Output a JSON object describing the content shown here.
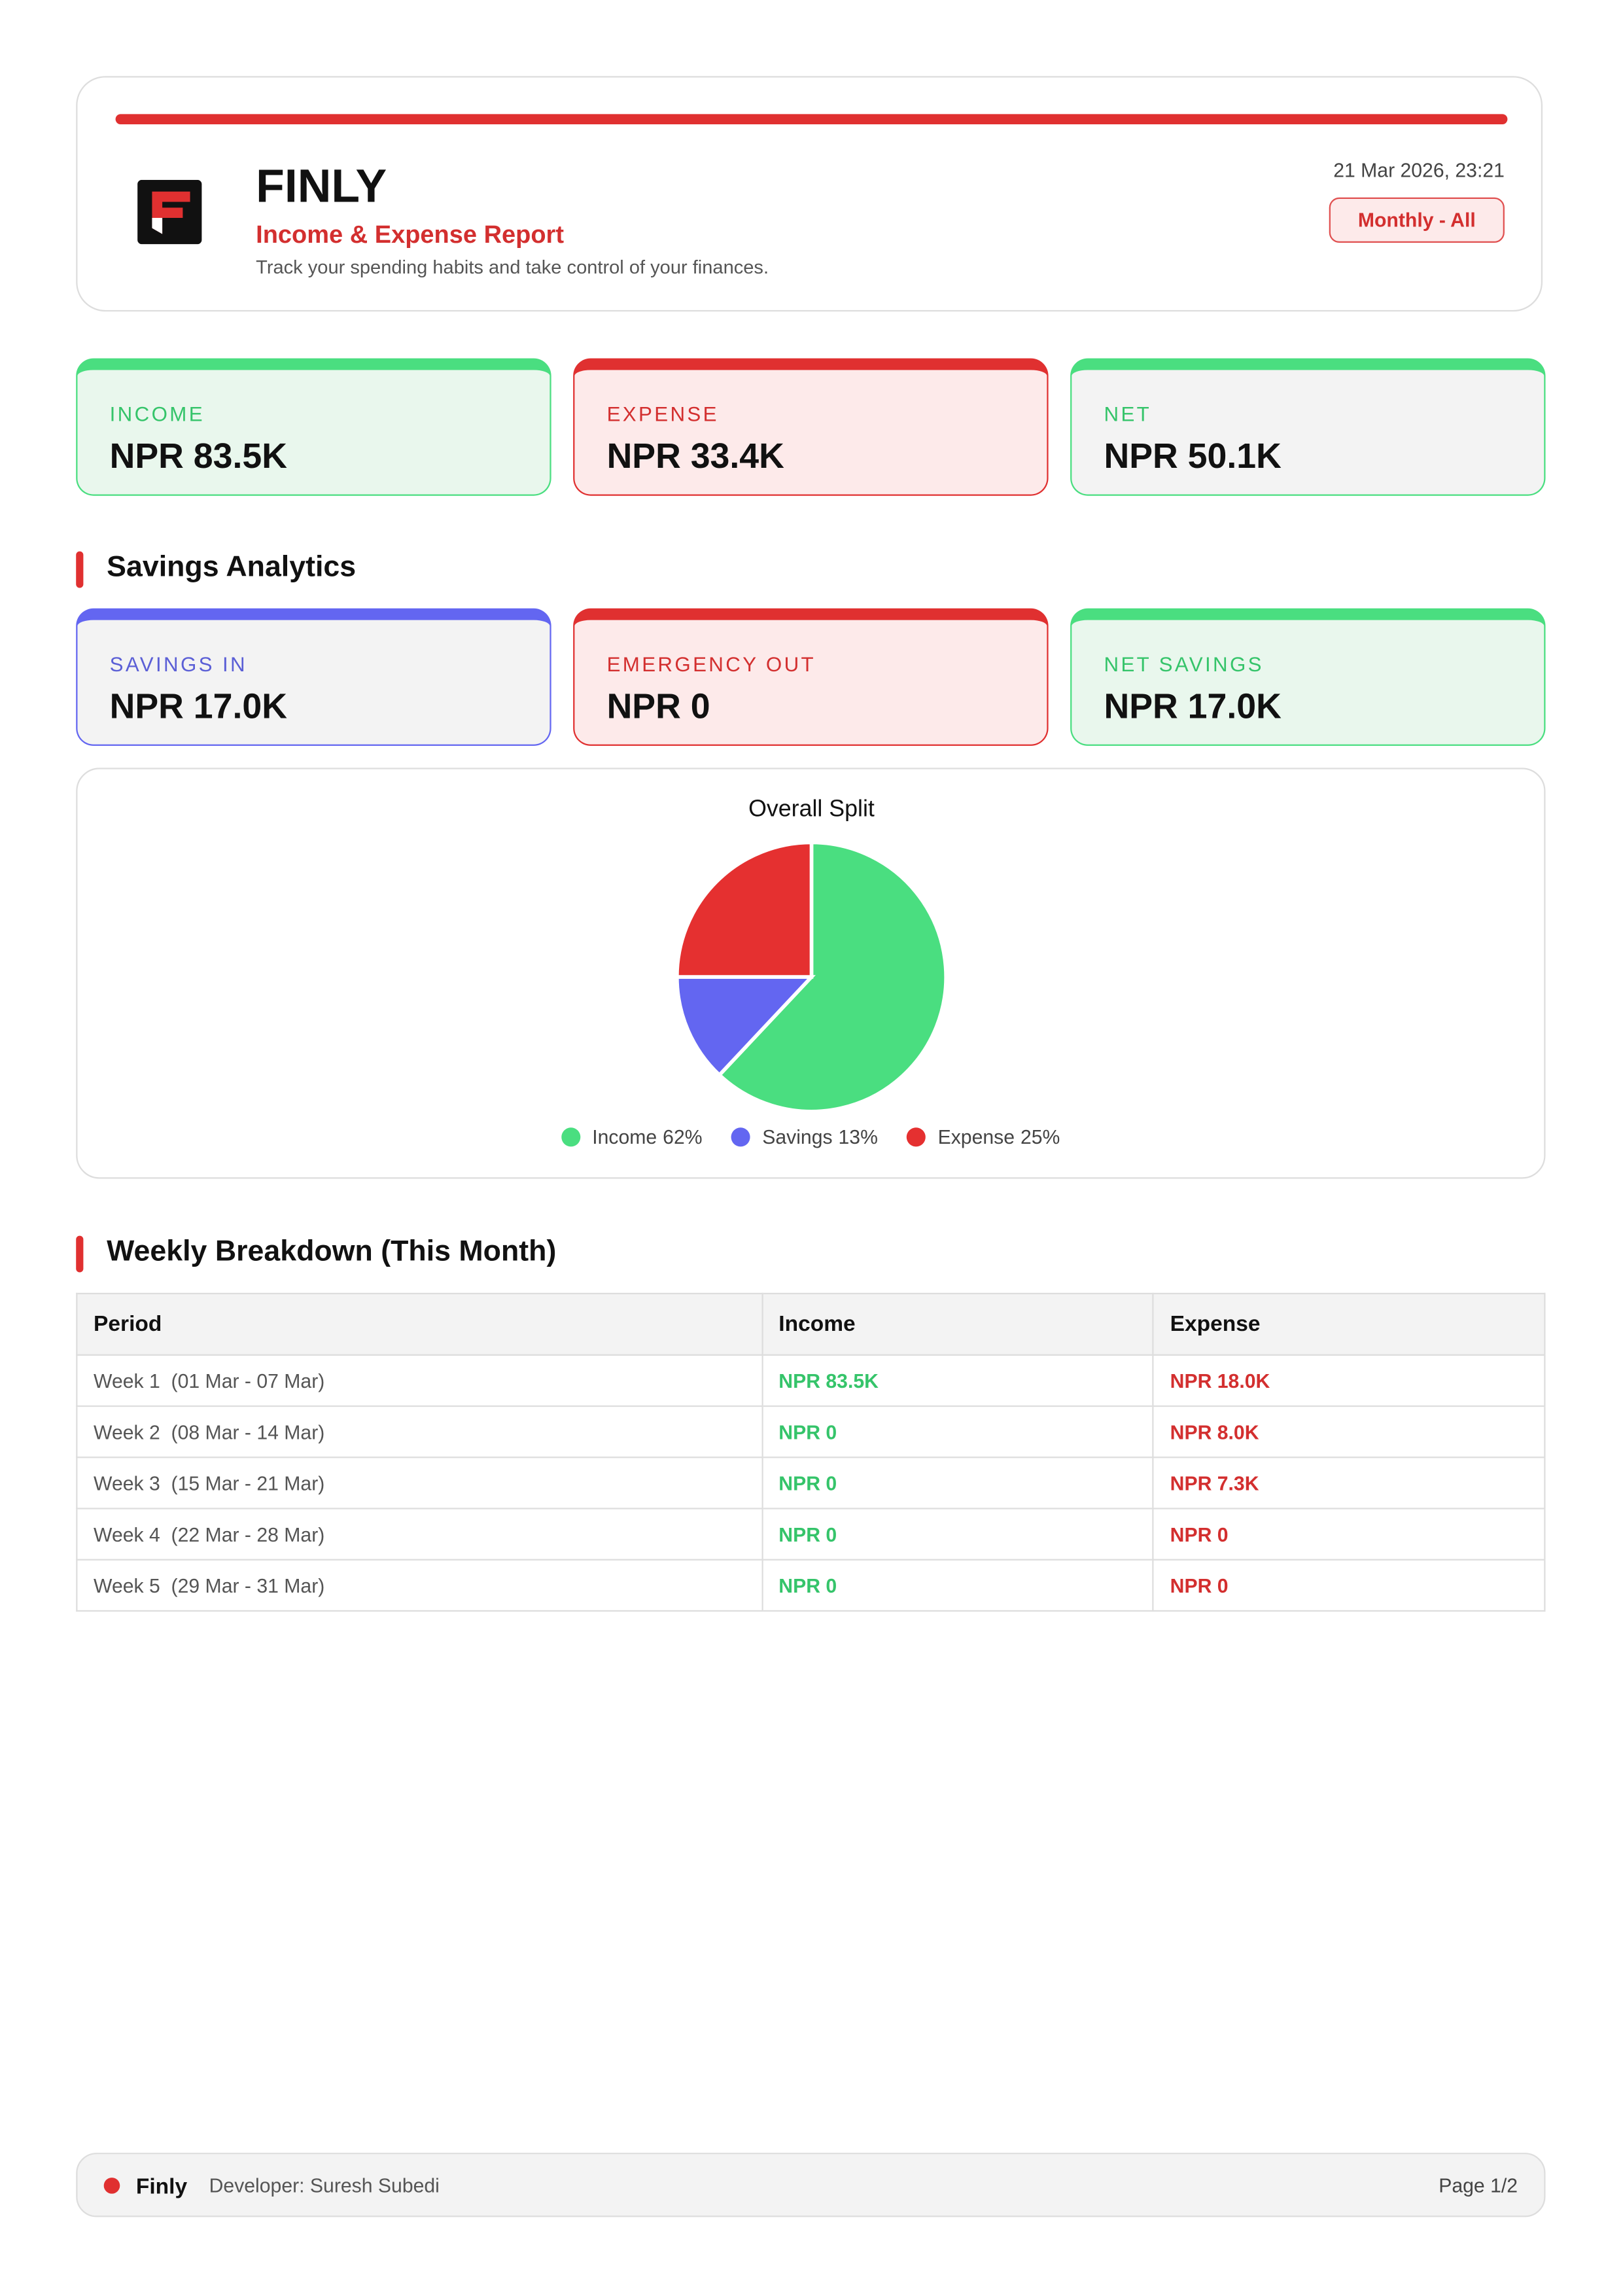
{
  "header": {
    "brand": "FINLY",
    "report_title": "Income & Expense Report",
    "tagline": "Track your spending habits and take control of your finances.",
    "timestamp": "21 Mar 2026, 23:21",
    "filter": "Monthly - All"
  },
  "summary_cards": [
    {
      "label": "INCOME",
      "value": "NPR 83.5K"
    },
    {
      "label": "EXPENSE",
      "value": "NPR 33.4K"
    },
    {
      "label": "NET",
      "value": "NPR 50.1K"
    }
  ],
  "savings_section": {
    "heading": "Savings Analytics",
    "cards": [
      {
        "label": "SAVINGS IN",
        "value": "NPR 17.0K"
      },
      {
        "label": "EMERGENCY OUT",
        "value": "NPR 0"
      },
      {
        "label": "NET SAVINGS",
        "value": "NPR 17.0K"
      }
    ]
  },
  "chart_data": {
    "type": "pie",
    "title": "Overall Split",
    "categories": [
      "Income",
      "Savings",
      "Expense"
    ],
    "values": [
      62,
      13,
      25
    ],
    "value_labels": [
      "62%",
      "13%",
      "25%"
    ],
    "colors": [
      "#4ade80",
      "#6366f1",
      "#e53030"
    ]
  },
  "weekly": {
    "heading": "Weekly Breakdown (This Month)",
    "table": {
      "columns": [
        "Period",
        "Income",
        "Expense"
      ],
      "rows": [
        [
          "Week 1  (01 Mar - 07 Mar)",
          "NPR 83.5K",
          "NPR 18.0K"
        ],
        [
          "Week 2  (08 Mar - 14 Mar)",
          "NPR 0",
          "NPR 8.0K"
        ],
        [
          "Week 3  (15 Mar - 21 Mar)",
          "NPR 0",
          "NPR 7.3K"
        ],
        [
          "Week 4  (22 Mar - 28 Mar)",
          "NPR 0",
          "NPR 0"
        ],
        [
          "Week 5  (29 Mar - 31 Mar)",
          "NPR 0",
          "NPR 0"
        ]
      ]
    }
  },
  "footer": {
    "brand": "Finly",
    "developer": "Developer: Suresh Subedi",
    "page": "Page 1/2"
  }
}
